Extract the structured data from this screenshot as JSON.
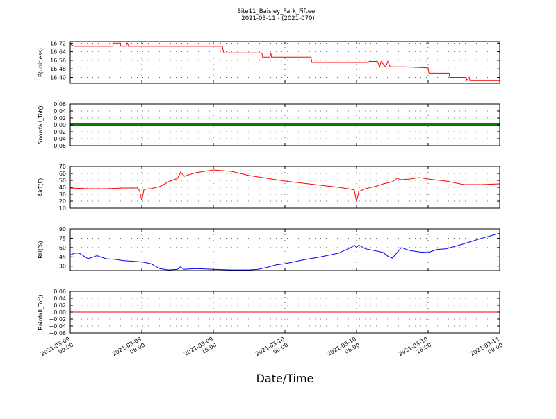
{
  "title_line1": "Site11_Baisley_Park_Fifteen",
  "title_line2": "2021-03-11 - (2021-070)",
  "xlabel": "Date/Time",
  "x_ticks": [
    {
      "l1": "2021-03-09",
      "l2": "00:00"
    },
    {
      "l1": "2021-03-09",
      "l2": "08:00"
    },
    {
      "l1": "2021-03-09",
      "l2": "16:00"
    },
    {
      "l1": "2021-03-10",
      "l2": "00:00"
    },
    {
      "l1": "2021-03-10",
      "l2": "08:00"
    },
    {
      "l1": "2021-03-10",
      "l2": "16:00"
    },
    {
      "l1": "2021-03-11",
      "l2": "00:00"
    }
  ],
  "chart_data": [
    {
      "type": "line",
      "ylabel": "P(unitless)",
      "ylim": [
        16.345,
        16.735
      ],
      "yticks": [
        16.4,
        16.48,
        16.56,
        16.64,
        16.72
      ],
      "ytick_labels": [
        "16.40",
        "16.48",
        "16.56",
        "16.64",
        "16.72"
      ],
      "xlim": [
        "2021-03-09 00:00",
        "2021-03-11 00:00"
      ],
      "grid": true,
      "series": [
        {
          "color": "#ff0000",
          "x": [
            "2021-03-09 00:00",
            "2021-03-09 00:10",
            "2021-03-09 00:30",
            "2021-03-09 04:45",
            "2021-03-09 04:50",
            "2021-03-09 05:35",
            "2021-03-09 05:40",
            "2021-03-09 06:15",
            "2021-03-09 06:20",
            "2021-03-09 06:25",
            "2021-03-09 06:30",
            "2021-03-09 17:00",
            "2021-03-09 17:10",
            "2021-03-09 21:25",
            "2021-03-09 21:30",
            "2021-03-09 22:20",
            "2021-03-09 22:25",
            "2021-03-09 22:30",
            "2021-03-09 22:40",
            "2021-03-10 02:55",
            "2021-03-10 03:00",
            "2021-03-10 09:20",
            "2021-03-10 09:25",
            "2021-03-10 10:20",
            "2021-03-10 10:35",
            "2021-03-10 10:45",
            "2021-03-10 11:15",
            "2021-03-10 11:30",
            "2021-03-10 11:45",
            "2021-03-10 11:55",
            "2021-03-10 12:05",
            "2021-03-10 13:20",
            "2021-03-10 16:00",
            "2021-03-10 16:05",
            "2021-03-10 18:20",
            "2021-03-10 18:25",
            "2021-03-10 20:15",
            "2021-03-10 20:20",
            "2021-03-10 20:35",
            "2021-03-10 20:40",
            "2021-03-10 20:50",
            "2021-03-10 24:00"
          ],
          "y": [
            16.72,
            16.7,
            16.69,
            16.69,
            16.72,
            16.72,
            16.69,
            16.69,
            16.72,
            16.72,
            16.69,
            16.69,
            16.63,
            16.63,
            16.59,
            16.59,
            16.63,
            16.59,
            16.59,
            16.59,
            16.54,
            16.54,
            16.55,
            16.55,
            16.5,
            16.55,
            16.5,
            16.55,
            16.5,
            16.5,
            16.5,
            16.5,
            16.49,
            16.44,
            16.44,
            16.4,
            16.4,
            16.37,
            16.4,
            16.37,
            16.37,
            16.37
          ]
        }
      ]
    },
    {
      "type": "line",
      "ylabel": "Snowfall_Tot()",
      "ylim": [
        -0.06,
        0.06
      ],
      "yticks": [
        -0.06,
        -0.04,
        -0.02,
        0.0,
        0.02,
        0.04,
        0.06
      ],
      "ytick_labels": [
        "−0.06",
        "−0.04",
        "−0.02",
        "0.00",
        "0.02",
        "0.04",
        "0.06"
      ],
      "xlim": [
        "2021-03-09 00:00",
        "2021-03-11 00:00"
      ],
      "grid": true,
      "series": [
        {
          "color": "#008000",
          "thick": true,
          "x": [
            "2021-03-09 00:00",
            "2021-03-10 24:00"
          ],
          "y": [
            0.0,
            0.0
          ]
        }
      ]
    },
    {
      "type": "line",
      "ylabel": "AirT(F)",
      "ylim": [
        10,
        70
      ],
      "yticks": [
        10,
        20,
        30,
        40,
        50,
        60,
        70
      ],
      "ytick_labels": [
        "10",
        "20",
        "30",
        "40",
        "50",
        "60",
        "70"
      ],
      "xlim": [
        "2021-03-09 00:00",
        "2021-03-11 00:00"
      ],
      "grid": true,
      "series": [
        {
          "color": "#ff0000",
          "x": [
            "2021-03-09 00:00",
            "2021-03-09 02:00",
            "2021-03-09 04:00",
            "2021-03-09 06:00",
            "2021-03-09 07:30",
            "2021-03-09 07:45",
            "2021-03-09 08:00",
            "2021-03-09 08:15",
            "2021-03-09 09:00",
            "2021-03-09 10:00",
            "2021-03-09 11:00",
            "2021-03-09 12:00",
            "2021-03-09 12:20",
            "2021-03-09 12:45",
            "2021-03-09 13:00",
            "2021-03-09 14:00",
            "2021-03-09 15:00",
            "2021-03-09 16:00",
            "2021-03-09 18:00",
            "2021-03-09 20:00",
            "2021-03-09 22:00",
            "2021-03-10 00:00",
            "2021-03-10 02:00",
            "2021-03-10 04:00",
            "2021-03-10 06:00",
            "2021-03-10 07:30",
            "2021-03-10 07:45",
            "2021-03-10 08:00",
            "2021-03-10 08:15",
            "2021-03-10 09:00",
            "2021-03-10 10:00",
            "2021-03-10 11:00",
            "2021-03-10 12:00",
            "2021-03-10 12:30",
            "2021-03-10 13:00",
            "2021-03-10 14:00",
            "2021-03-10 15:00",
            "2021-03-10 16:00",
            "2021-03-10 18:00",
            "2021-03-10 20:00",
            "2021-03-10 22:00",
            "2021-03-10 24:00"
          ],
          "y": [
            39,
            38,
            38,
            39,
            39,
            35,
            21,
            37,
            38,
            41,
            48,
            53,
            62,
            56,
            57,
            61,
            63,
            65,
            63,
            57,
            53,
            49,
            46,
            43,
            40,
            37,
            36,
            19,
            34,
            38,
            41,
            45,
            48,
            53,
            51,
            52,
            54,
            52,
            49,
            44,
            44,
            45
          ]
        }
      ]
    },
    {
      "type": "line",
      "ylabel": "RH(%)",
      "ylim": [
        23,
        90
      ],
      "yticks": [
        30,
        45,
        60,
        75,
        90
      ],
      "ytick_labels": [
        "30",
        "45",
        "60",
        "75",
        "90"
      ],
      "xlim": [
        "2021-03-09 00:00",
        "2021-03-11 00:00"
      ],
      "grid": true,
      "series": [
        {
          "color": "#0000ff",
          "x": [
            "2021-03-09 00:00",
            "2021-03-09 00:30",
            "2021-03-09 01:00",
            "2021-03-09 02:00",
            "2021-03-09 03:00",
            "2021-03-09 04:00",
            "2021-03-09 05:00",
            "2021-03-09 06:00",
            "2021-03-09 07:00",
            "2021-03-09 08:00",
            "2021-03-09 09:00",
            "2021-03-09 10:00",
            "2021-03-09 11:00",
            "2021-03-09 12:00",
            "2021-03-09 12:20",
            "2021-03-09 12:40",
            "2021-03-09 14:00",
            "2021-03-09 16:00",
            "2021-03-09 18:00",
            "2021-03-09 20:00",
            "2021-03-09 21:00",
            "2021-03-09 22:00",
            "2021-03-09 23:00",
            "2021-03-10 00:00",
            "2021-03-10 02:00",
            "2021-03-10 04:00",
            "2021-03-10 06:00",
            "2021-03-10 07:30",
            "2021-03-10 07:45",
            "2021-03-10 08:00",
            "2021-03-10 08:15",
            "2021-03-10 09:00",
            "2021-03-10 10:00",
            "2021-03-10 11:00",
            "2021-03-10 11:30",
            "2021-03-10 12:00",
            "2021-03-10 13:00",
            "2021-03-10 14:00",
            "2021-03-10 15:00",
            "2021-03-10 16:00",
            "2021-03-10 17:00",
            "2021-03-10 18:00",
            "2021-03-10 20:00",
            "2021-03-10 22:00",
            "2021-03-10 24:00"
          ],
          "y": [
            48,
            51,
            51,
            42,
            47,
            42,
            41,
            39,
            38,
            37,
            34,
            26,
            24,
            25,
            29,
            25,
            26,
            25,
            24,
            24,
            25,
            28,
            32,
            34,
            40,
            45,
            51,
            61,
            64,
            60,
            64,
            58,
            55,
            52,
            46,
            43,
            60,
            55,
            53,
            52,
            57,
            58,
            66,
            75,
            83
          ]
        }
      ]
    },
    {
      "type": "line",
      "ylabel": "Rainfall_Tot()",
      "ylim": [
        -0.06,
        0.06
      ],
      "yticks": [
        -0.06,
        -0.04,
        -0.02,
        0.0,
        0.02,
        0.04,
        0.06
      ],
      "ytick_labels": [
        "−0.06",
        "−0.04",
        "−0.02",
        "0.00",
        "0.02",
        "0.04",
        "0.06"
      ],
      "xlim": [
        "2021-03-09 00:00",
        "2021-03-11 00:00"
      ],
      "grid": true,
      "series": [
        {
          "color": "#ff0000",
          "x": [
            "2021-03-09 00:00",
            "2021-03-10 24:00"
          ],
          "y": [
            0.0,
            0.0
          ]
        }
      ]
    }
  ]
}
